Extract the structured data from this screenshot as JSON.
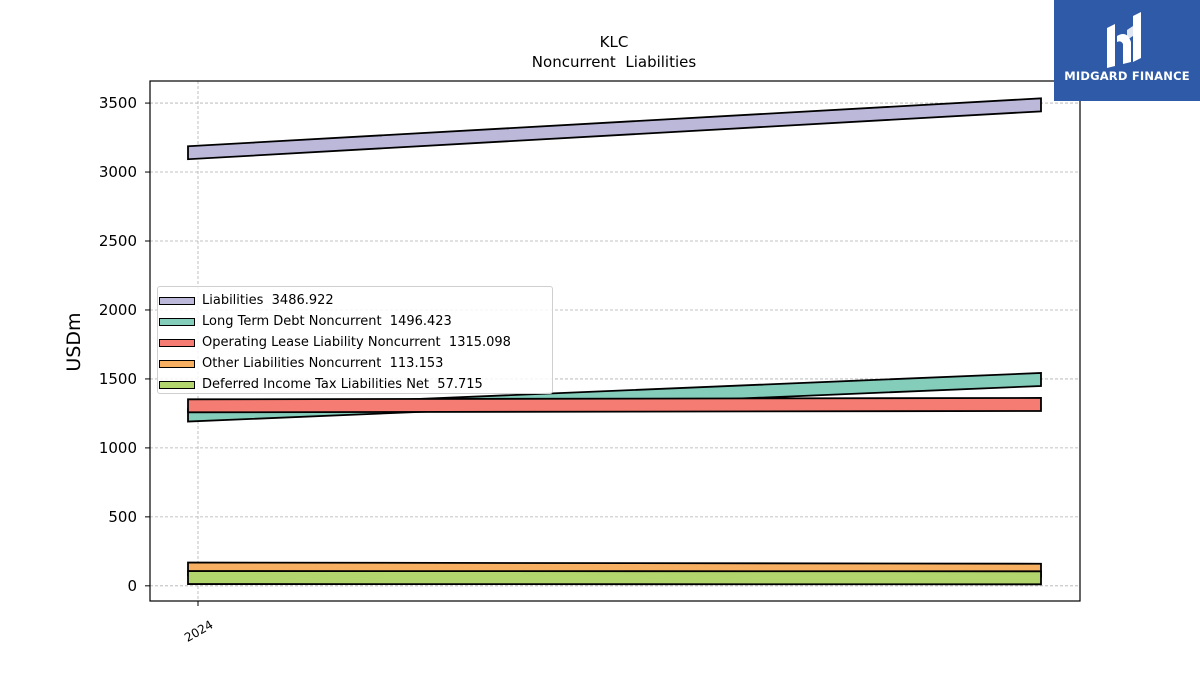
{
  "chart_data": {
    "type": "area",
    "title": "KLC",
    "subtitle": "Noncurrent  Liabilities",
    "ylabel": "USDm",
    "xlabel": "",
    "x_tick_labels": [
      "2024"
    ],
    "ylim": [
      -110,
      3660
    ],
    "y_ticks": [
      0,
      500,
      1000,
      1500,
      2000,
      2500,
      3000,
      3500
    ],
    "grid": true,
    "legend_position": "center-left",
    "series": [
      {
        "name": "Liabilities",
        "legend_value": "3486.922",
        "start": 3140,
        "end": 3487,
        "color": "#bcb8d9"
      },
      {
        "name": "Long Term Debt Noncurrent",
        "legend_value": "1496.423",
        "start": 1238,
        "end": 1496,
        "color": "#84cdbb"
      },
      {
        "name": "Operating Lease Liability Noncurrent",
        "legend_value": "1315.098",
        "start": 1305,
        "end": 1315,
        "color": "#f47c72"
      },
      {
        "name": "Other Liabilities Noncurrent",
        "legend_value": "113.153",
        "start": 122,
        "end": 113,
        "color": "#f7b062"
      },
      {
        "name": "Deferred Income Tax Liabilities Net",
        "legend_value": "57.715",
        "start": 60,
        "end": 58,
        "color": "#b2d66d"
      }
    ]
  },
  "brand": {
    "name": "MIDGARD FINANCE",
    "color": "#2f5aa8"
  }
}
